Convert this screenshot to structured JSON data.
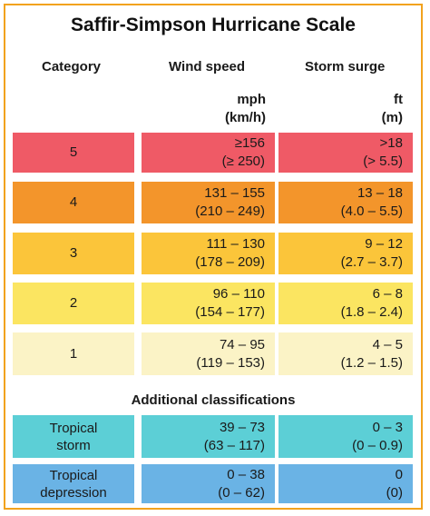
{
  "title": "Saffir-Simpson Hurricane Scale",
  "headers": {
    "category": "Category",
    "wind": "Wind speed",
    "surge": "Storm surge",
    "wind_unit_1": "mph",
    "wind_unit_2": "(km/h)",
    "surge_unit_1": "ft",
    "surge_unit_2": "(m)"
  },
  "rows": [
    {
      "category": "5",
      "wind_1": "≥156",
      "wind_2": "(≥ 250)",
      "surge_1": ">18",
      "surge_2": "(> 5.5)",
      "color": "#ef5a66"
    },
    {
      "category": "4",
      "wind_1": "131 – 155",
      "wind_2": "(210 – 249)",
      "surge_1": "13 – 18",
      "surge_2": "(4.0 – 5.5)",
      "color": "#f3952b"
    },
    {
      "category": "3",
      "wind_1": "111 – 130",
      "wind_2": "(178 – 209)",
      "surge_1": "9 – 12",
      "surge_2": "(2.7 – 3.7)",
      "color": "#fbc53a"
    },
    {
      "category": "2",
      "wind_1": "96 – 110",
      "wind_2": "(154 – 177)",
      "surge_1": "6 – 8",
      "surge_2": "(1.8 – 2.4)",
      "color": "#fbe561"
    },
    {
      "category": "1",
      "wind_1": "74 – 95",
      "wind_2": "(119 – 153)",
      "surge_1": "4 – 5",
      "surge_2": "(1.2 – 1.5)",
      "color": "#fbf3c6"
    }
  ],
  "additional_label": "Additional classifications",
  "additional": [
    {
      "name_1": "Tropical",
      "name_2": "storm",
      "wind_1": "39 – 73",
      "wind_2": "(63 – 117)",
      "surge_1": "0 – 3",
      "surge_2": "(0 – 0.9)",
      "color": "#5ccfd6"
    },
    {
      "name_1": "Tropical",
      "name_2": "depression",
      "wind_1": "0 – 38",
      "wind_2": "(0 – 62)",
      "surge_1": "0",
      "surge_2": "(0)",
      "color": "#6ab3e5"
    }
  ]
}
